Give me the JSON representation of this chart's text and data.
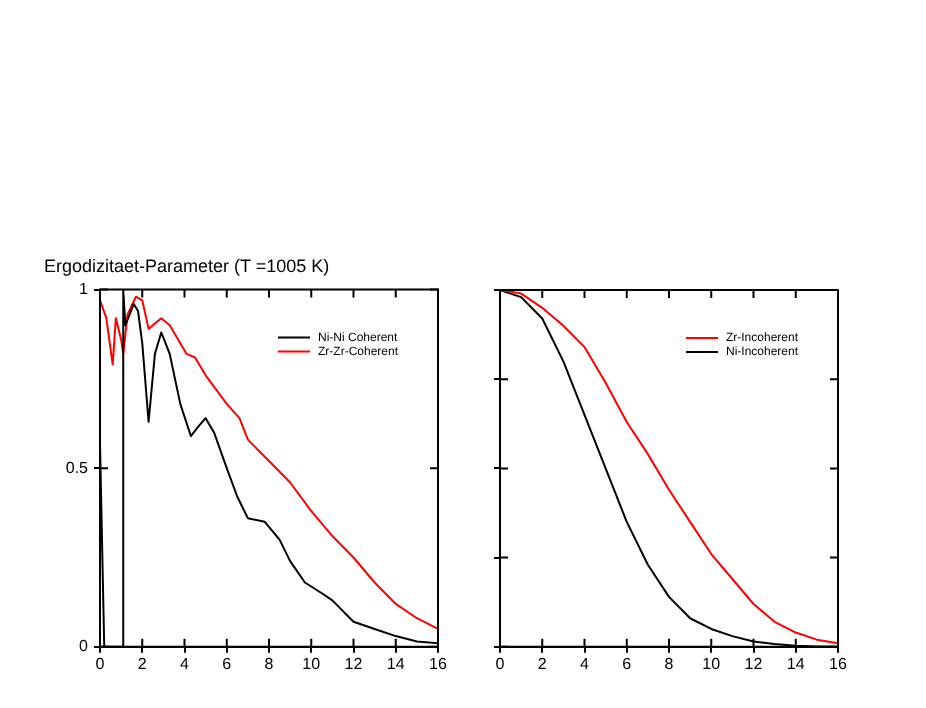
{
  "chart_data": [
    {
      "type": "line",
      "title": "Ergodizitaet-Parameter (T =1005 K)",
      "xlim": [
        0,
        16
      ],
      "xticks": [
        0,
        2,
        4,
        6,
        8,
        10,
        12,
        14,
        16
      ],
      "ylim": [
        0,
        1
      ],
      "yticks": [
        0,
        0.5,
        1
      ],
      "legend": "top right",
      "grid": false,
      "marker": "none",
      "line_style": "solid",
      "series": [
        {
          "name": "Ni-Ni Coherent",
          "color": "#000000",
          "x": [
            0,
            0.2,
            0.5,
            0.9,
            1.1,
            1.1,
            1.2,
            1.4,
            1.6,
            1.8,
            2.0,
            2.3,
            2.6,
            2.9,
            3.3,
            3.8,
            4.3,
            4.7,
            5.0,
            5.4,
            6.0,
            6.5,
            7.0,
            7.8,
            8.5,
            9.0,
            9.7,
            10.5,
            11,
            12,
            13,
            14,
            15,
            16
          ],
          "values": [
            0.57,
            0,
            0,
            0,
            0,
            1,
            0.9,
            0.93,
            0.96,
            0.94,
            0.85,
            0.63,
            0.82,
            0.88,
            0.82,
            0.68,
            0.59,
            0.62,
            0.64,
            0.6,
            0.5,
            0.42,
            0.36,
            0.35,
            0.3,
            0.24,
            0.18,
            0.15,
            0.13,
            0.07,
            0.05,
            0.03,
            0.015,
            0.01
          ]
        },
        {
          "name": "Zr-Zr-Coherent",
          "color": "#ff0000",
          "x": [
            0,
            0.3,
            0.6,
            0.75,
            1.0,
            1.1,
            1.3,
            1.7,
            2.0,
            2.3,
            2.5,
            2.9,
            3.3,
            3.8,
            4.1,
            4.5,
            5,
            6,
            6.6,
            7,
            8,
            9,
            10,
            11,
            12,
            13,
            14,
            15,
            16
          ],
          "values": [
            0.97,
            0.92,
            0.79,
            0.92,
            0.86,
            0.82,
            0.93,
            0.98,
            0.97,
            0.89,
            0.9,
            0.92,
            0.9,
            0.85,
            0.82,
            0.81,
            0.76,
            0.68,
            0.64,
            0.58,
            0.52,
            0.46,
            0.38,
            0.31,
            0.25,
            0.18,
            0.12,
            0.08,
            0.05
          ]
        }
      ]
    },
    {
      "type": "line",
      "xlim": [
        0,
        16
      ],
      "xticks": [
        0,
        2,
        4,
        6,
        8,
        10,
        12,
        14,
        16
      ],
      "ylim": [
        0,
        1
      ],
      "yticks": [
        0,
        0.25,
        0.5,
        0.75,
        1
      ],
      "tick_labels": "x",
      "legend": "top right",
      "grid": false,
      "marker": "none",
      "line_style": "solid",
      "series": [
        {
          "name": "Zr-Incoherent",
          "color": "#ff0000",
          "x": [
            0,
            1,
            2,
            3,
            4,
            5,
            6,
            7,
            8,
            9,
            10,
            11,
            12,
            13,
            14,
            15,
            16
          ],
          "values": [
            1,
            0.99,
            0.95,
            0.9,
            0.84,
            0.74,
            0.63,
            0.54,
            0.44,
            0.35,
            0.26,
            0.19,
            0.12,
            0.07,
            0.04,
            0.02,
            0.01
          ]
        },
        {
          "name": "Ni-Incoherent",
          "color": "#000000",
          "x": [
            0,
            1,
            2,
            3,
            4,
            5,
            6,
            7,
            8,
            9,
            10,
            11,
            12,
            13,
            14,
            15,
            16
          ],
          "values": [
            1,
            0.98,
            0.92,
            0.8,
            0.65,
            0.5,
            0.35,
            0.23,
            0.14,
            0.08,
            0.05,
            0.03,
            0.015,
            0.008,
            0.003,
            0.001,
            0
          ]
        }
      ]
    }
  ]
}
